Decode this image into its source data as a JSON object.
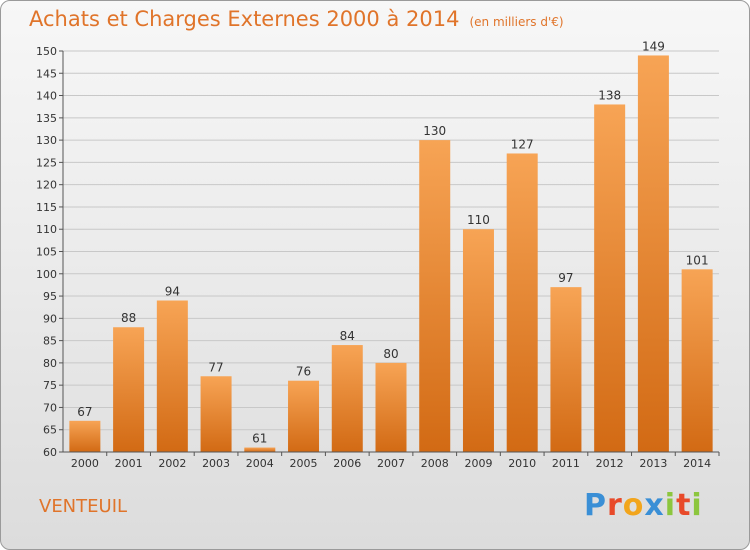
{
  "title": "Achats et Charges Externes 2000 à 2014",
  "subtitle": "(en milliers d'€)",
  "commune": "VENTEUIL",
  "logo": {
    "text": "Proxiti",
    "letters": [
      {
        "char": "P",
        "color": "#3a8fd6"
      },
      {
        "char": "r",
        "color": "#e84a2a"
      },
      {
        "char": "o",
        "color": "#f2a51c"
      },
      {
        "char": "x",
        "color": "#3a8fd6"
      },
      {
        "char": "i",
        "color": "#8cc63e"
      },
      {
        "char": "t",
        "color": "#e84a2a"
      },
      {
        "char": "i",
        "color": "#8cc63e"
      }
    ]
  },
  "colors": {
    "accent": "#e0742a",
    "bar_top": "#f7a455",
    "bar_bottom": "#d26a14",
    "grid": "#c8c8c8",
    "axis_text": "#333333"
  },
  "chart_data": {
    "type": "bar",
    "title": "Achats et Charges Externes 2000 à 2014",
    "subtitle": "(en milliers d'€)",
    "categories": [
      "2000",
      "2001",
      "2002",
      "2003",
      "2004",
      "2005",
      "2006",
      "2007",
      "2008",
      "2009",
      "2010",
      "2011",
      "2012",
      "2013",
      "2014"
    ],
    "values": [
      67,
      88,
      94,
      77,
      61,
      76,
      84,
      80,
      130,
      110,
      127,
      97,
      138,
      149,
      101
    ],
    "data_labels": [
      "67",
      "88",
      "94",
      "77",
      "61",
      "76",
      "84",
      "80",
      "130",
      "110",
      "127",
      "97",
      "138",
      "149",
      "101"
    ],
    "ylim": [
      60,
      150
    ],
    "yticks": [
      60,
      65,
      70,
      75,
      80,
      85,
      90,
      95,
      100,
      105,
      110,
      115,
      120,
      125,
      130,
      135,
      140,
      145,
      150
    ],
    "grid": true,
    "legend": "none"
  }
}
